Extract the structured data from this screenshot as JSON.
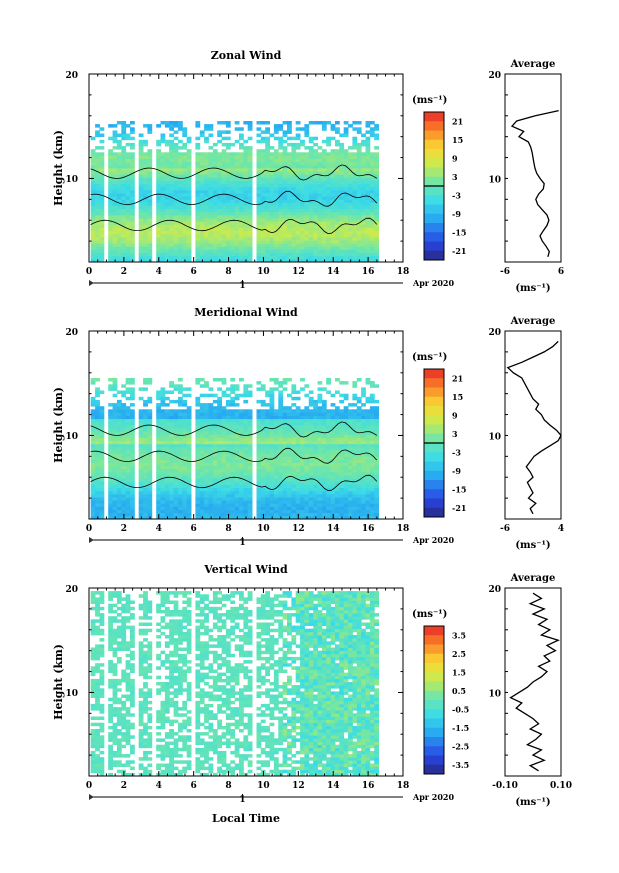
{
  "chart_data": [
    {
      "type": "heatmap",
      "title": "Zonal Wind",
      "xlabel": "",
      "ylabel": "Height (km)",
      "xlim": [
        0,
        18
      ],
      "ylim": [
        2,
        20
      ],
      "x_ticks": [
        "0",
        "2",
        "4",
        "6",
        "8",
        "10",
        "12",
        "14",
        "16",
        "18"
      ],
      "y_ticks": [
        "10",
        "20"
      ],
      "date_axis": {
        "tick": "1",
        "label": "Apr 2020"
      },
      "colorbar": {
        "unit": "(ms⁻¹)",
        "range": [
          -24,
          24
        ],
        "ticks": [
          "21",
          "15",
          "9",
          "3",
          "-3",
          "-9",
          "-15",
          "-21"
        ]
      },
      "description_values": {
        "data_coverage_hours": [
          0.1,
          16.5
        ],
        "data_top_km": 15.5
      },
      "average": {
        "title": "Average",
        "xlabel": "(ms⁻¹)",
        "xlim": [
          -6,
          6
        ],
        "x_ticks": [
          "-6",
          "6"
        ],
        "y_ticks": [
          "10",
          "20"
        ],
        "height": [
          2.5,
          3,
          3.5,
          4,
          4.5,
          5,
          5.5,
          6,
          6.5,
          7,
          7.5,
          8,
          8.5,
          9,
          9.5,
          10,
          10.5,
          11,
          11.5,
          12,
          12.5,
          13,
          13.5,
          14,
          14.5,
          15,
          15.5,
          16,
          16.5
        ],
        "wind": [
          3.2,
          3.5,
          2.8,
          2.0,
          1.5,
          2.2,
          3.0,
          3.4,
          3.0,
          2.0,
          1.0,
          0.6,
          1.2,
          2.2,
          2.4,
          1.5,
          0.8,
          0.4,
          0.2,
          0.0,
          -0.2,
          -0.5,
          -1.0,
          -3.0,
          -2.0,
          -4.5,
          -3.5,
          0.5,
          5.5
        ]
      }
    },
    {
      "type": "heatmap",
      "title": "Meridional Wind",
      "xlabel": "",
      "ylabel": "Height (km)",
      "xlim": [
        0,
        18
      ],
      "ylim": [
        2,
        20
      ],
      "x_ticks": [
        "0",
        "2",
        "4",
        "6",
        "8",
        "10",
        "12",
        "14",
        "16",
        "18"
      ],
      "y_ticks": [
        "10",
        "20"
      ],
      "date_axis": {
        "tick": "1",
        "label": "Apr 2020"
      },
      "colorbar": {
        "unit": "(ms⁻¹)",
        "range": [
          -24,
          24
        ],
        "ticks": [
          "21",
          "15",
          "9",
          "3",
          "-3",
          "-9",
          "-15",
          "-21"
        ]
      },
      "average": {
        "title": "Average",
        "xlabel": "(ms⁻¹)",
        "xlim": [
          -6,
          4
        ],
        "x_ticks": [
          "-6",
          "4"
        ],
        "y_ticks": [
          "10",
          "20"
        ],
        "height": [
          2.5,
          3,
          3.5,
          4,
          4.5,
          5,
          5.5,
          6,
          6.5,
          7,
          7.5,
          8,
          8.5,
          9,
          9.5,
          10,
          10.5,
          11,
          11.5,
          12,
          12.5,
          13,
          13.5,
          14,
          14.5,
          15,
          15.5,
          16,
          16.5,
          17,
          17.5,
          18,
          18.5,
          19
        ],
        "wind": [
          -1.0,
          -1.5,
          -0.5,
          -1.8,
          -1.0,
          -1.5,
          -2.0,
          -1.0,
          -1.5,
          -2.2,
          -1.5,
          -0.8,
          0.5,
          2.0,
          3.5,
          4.0,
          3.2,
          2.0,
          1.0,
          0.5,
          -0.5,
          0.0,
          -1.0,
          -1.5,
          -2.0,
          -2.5,
          -3.0,
          -4.5,
          -5.5,
          -3.0,
          -1.0,
          1.0,
          2.5,
          3.5
        ]
      }
    },
    {
      "type": "heatmap",
      "title": "Vertical Wind",
      "xlabel": "Local Time",
      "ylabel": "Height (km)",
      "xlim": [
        0,
        18
      ],
      "ylim": [
        2,
        20
      ],
      "x_ticks": [
        "0",
        "2",
        "4",
        "6",
        "8",
        "10",
        "12",
        "14",
        "16",
        "18"
      ],
      "y_ticks": [
        "10",
        "20"
      ],
      "date_axis": {
        "tick": "1",
        "label": "Apr 2020"
      },
      "colorbar": {
        "unit": "(ms⁻¹)",
        "range": [
          -4,
          4
        ],
        "ticks": [
          "3.5",
          "2.5",
          "1.5",
          "0.5",
          "-0.5",
          "-1.5",
          "-2.5",
          "-3.5"
        ]
      },
      "average": {
        "title": "Average",
        "xlabel": "(ms⁻¹)",
        "xlim": [
          -0.1,
          0.1
        ],
        "x_ticks": [
          "-0.10",
          "0.10"
        ],
        "y_ticks": [
          "10",
          "20"
        ],
        "height": [
          2.5,
          3,
          3.5,
          4,
          4.5,
          5,
          5.5,
          6,
          6.5,
          7,
          7.5,
          8,
          8.5,
          9,
          9.5,
          10,
          10.5,
          11,
          11.5,
          12,
          12.5,
          13,
          13.5,
          14,
          14.5,
          15,
          15.5,
          16,
          16.5,
          17,
          17.5,
          18,
          18.5,
          19,
          19.5
        ],
        "wind": [
          0.02,
          -0.01,
          0.04,
          0.0,
          0.03,
          -0.02,
          0.01,
          0.03,
          -0.01,
          0.02,
          0.0,
          -0.03,
          -0.06,
          -0.04,
          -0.08,
          -0.05,
          -0.02,
          0.0,
          0.03,
          0.05,
          0.02,
          0.06,
          0.04,
          0.08,
          0.05,
          0.09,
          0.03,
          0.06,
          0.02,
          0.05,
          0.0,
          0.04,
          -0.01,
          0.03,
          0.0
        ]
      }
    }
  ]
}
